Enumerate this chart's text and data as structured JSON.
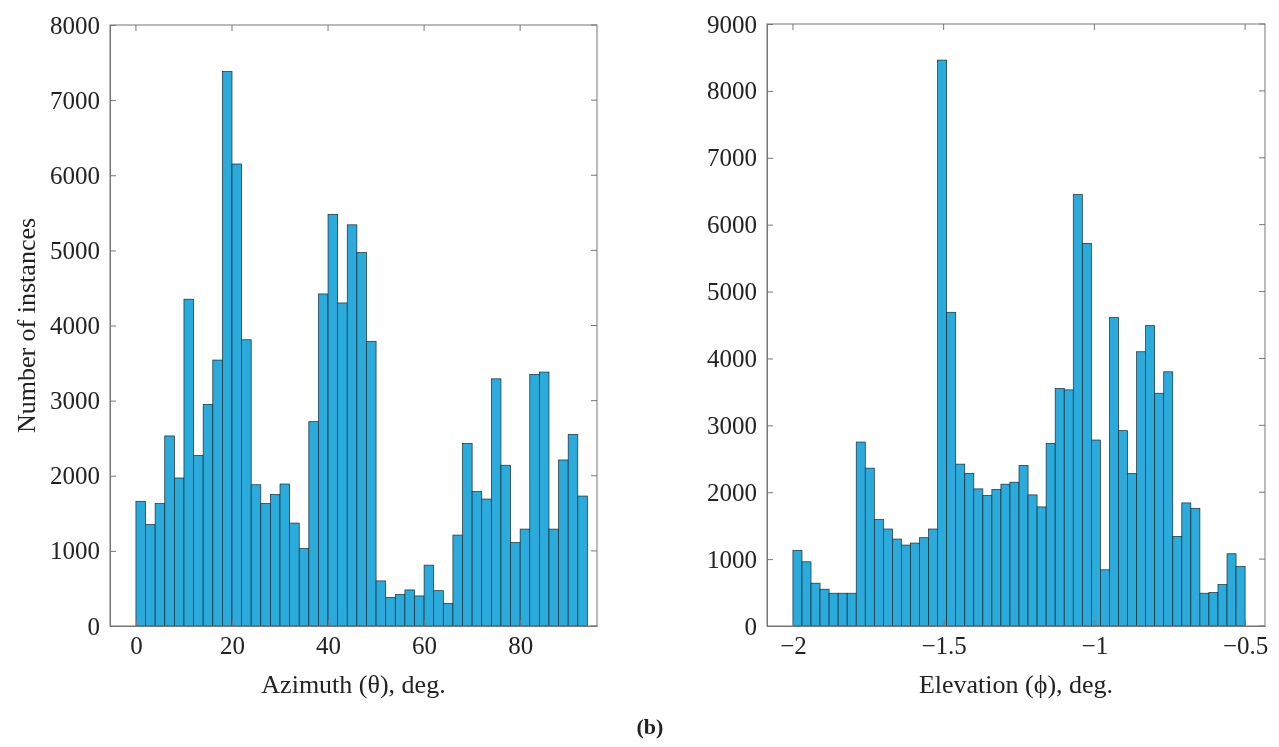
{
  "chart_data": [
    {
      "type": "histogram",
      "xlabel": "Azimuth (θ), deg.",
      "ylabel": "Number of instances",
      "color": "#2aabdc",
      "bins": [
        0,
        2,
        4,
        6,
        8,
        10,
        12,
        14,
        16,
        18,
        20,
        22,
        24,
        26,
        28,
        30,
        32,
        34,
        36,
        38,
        40,
        42,
        44,
        46,
        48,
        50,
        52,
        54,
        56,
        58,
        60,
        62,
        64,
        66,
        68,
        70,
        72,
        74,
        76,
        78,
        80,
        82,
        84,
        86,
        88,
        90,
        92,
        94
      ],
      "values": [
        1660,
        1350,
        1630,
        2530,
        1970,
        4350,
        2270,
        2950,
        3540,
        7380,
        6150,
        3810,
        1880,
        1630,
        1750,
        1890,
        1370,
        1030,
        2720,
        4420,
        5480,
        4300,
        5340,
        4970,
        3790,
        600,
        380,
        420,
        480,
        400,
        810,
        470,
        300,
        1210,
        2430,
        1790,
        1690,
        3290,
        2140,
        1110,
        1290,
        3350,
        3380,
        1290,
        2210,
        2550,
        1730
      ],
      "xlim": [
        -5.4,
        96
      ],
      "xticks": [
        0,
        20,
        40,
        60,
        80
      ],
      "ylim": [
        0,
        8000
      ],
      "yticks": [
        0,
        1000,
        2000,
        3000,
        4000,
        5000,
        6000,
        7000,
        8000
      ],
      "grid": false,
      "annotations": [
        "(b)"
      ]
    },
    {
      "type": "histogram",
      "xlabel": "Elevation (ϕ), deg.",
      "color": "#2aabdc",
      "bins": [
        -2,
        -1.97,
        -1.94,
        -1.91,
        -1.88,
        -1.85,
        -1.82,
        -1.79,
        -1.76,
        -1.73,
        -1.7,
        -1.67,
        -1.64,
        -1.61,
        -1.58,
        -1.55,
        -1.52,
        -1.49,
        -1.46,
        -1.43,
        -1.4,
        -1.37,
        -1.34,
        -1.31,
        -1.28,
        -1.25,
        -1.22,
        -1.19,
        -1.16,
        -1.13,
        -1.1,
        -1.07,
        -1.04,
        -1.01,
        -0.98,
        -0.95,
        -0.92,
        -0.89,
        -0.86,
        -0.83,
        -0.8,
        -0.77,
        -0.74,
        -0.71,
        -0.68,
        -0.65,
        -0.62,
        -0.59,
        -0.56,
        -0.53,
        -0.5
      ],
      "values": [
        1130,
        960,
        640,
        550,
        490,
        490,
        490,
        2750,
        2360,
        1590,
        1450,
        1300,
        1210,
        1240,
        1320,
        1450,
        8460,
        4690,
        2420,
        2280,
        2050,
        1950,
        2040,
        2120,
        2150,
        2400,
        1960,
        1780,
        2730,
        3550,
        3530,
        6450,
        5720,
        2780,
        840,
        4610,
        2920,
        2280,
        4100,
        4490,
        3480,
        3800,
        1340,
        1840,
        1760,
        490,
        500,
        620,
        1080,
        890
      ],
      "xlim": [
        -2.086,
        -0.434
      ],
      "xticks": [
        -2,
        -1.5,
        -1,
        -0.5
      ],
      "ylim": [
        0,
        9000
      ],
      "yticks": [
        0,
        1000,
        2000,
        3000,
        4000,
        5000,
        6000,
        7000,
        8000,
        9000
      ],
      "grid": false
    }
  ]
}
